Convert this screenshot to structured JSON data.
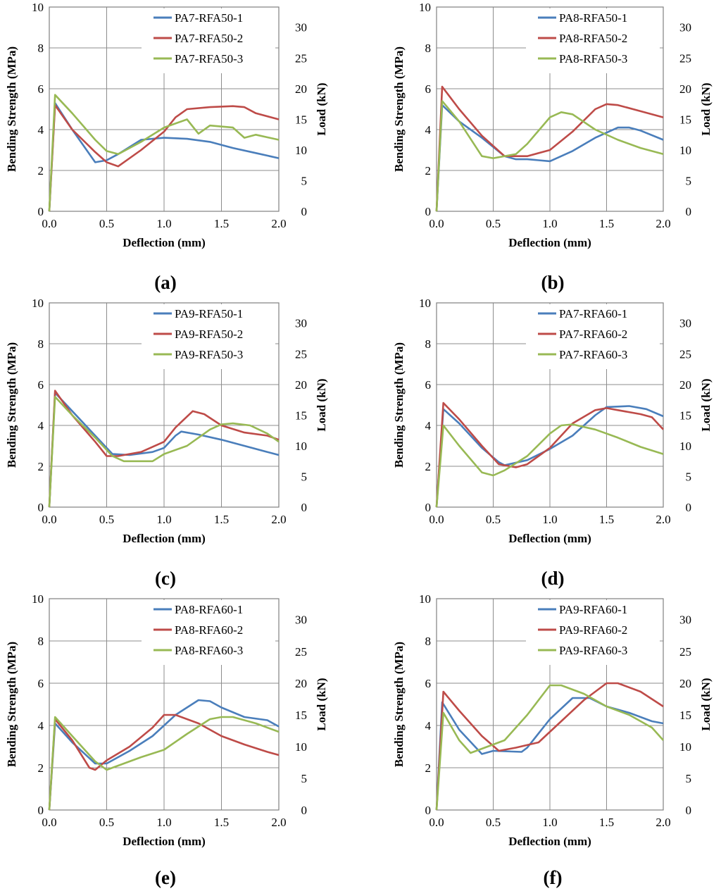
{
  "colors": {
    "series1": "#4a7ebb",
    "series2": "#be4b48",
    "series3": "#98b954"
  },
  "chart_data": [
    {
      "type": "line",
      "panel_label": "(a)",
      "xlabel": "Deflection (mm)",
      "ylabel": "Bending Strength (MPa)",
      "y2label": "Load (kN)",
      "xlim": [
        0,
        2
      ],
      "ylim": [
        0,
        10
      ],
      "y2lim": [
        0,
        33.3
      ],
      "xticks": [
        "0.0",
        "0.5",
        "1.0",
        "1.5",
        "2.0"
      ],
      "yticks": [
        "0",
        "2",
        "4",
        "6",
        "8",
        "10"
      ],
      "y2ticks": [
        "0",
        "5",
        "10",
        "15",
        "20",
        "25",
        "30"
      ],
      "series": [
        {
          "name": "PA7-RFA50-1",
          "x": [
            0,
            0.05,
            0.2,
            0.4,
            0.5,
            0.6,
            0.8,
            1.0,
            1.2,
            1.4,
            1.6,
            1.8,
            2.0
          ],
          "y": [
            0,
            5.3,
            4.0,
            2.4,
            2.5,
            2.8,
            3.5,
            3.6,
            3.55,
            3.4,
            3.1,
            2.85,
            2.6
          ]
        },
        {
          "name": "PA7-RFA50-2",
          "x": [
            0,
            0.05,
            0.2,
            0.4,
            0.5,
            0.6,
            0.8,
            1.0,
            1.1,
            1.2,
            1.4,
            1.6,
            1.7,
            1.8,
            2.0
          ],
          "y": [
            0,
            5.2,
            4.0,
            2.9,
            2.4,
            2.2,
            3.0,
            3.9,
            4.6,
            5.0,
            5.1,
            5.15,
            5.1,
            4.8,
            4.5
          ]
        },
        {
          "name": "PA7-RFA50-3",
          "x": [
            0,
            0.05,
            0.2,
            0.4,
            0.5,
            0.6,
            0.8,
            1.0,
            1.2,
            1.3,
            1.4,
            1.6,
            1.7,
            1.8,
            2.0
          ],
          "y": [
            0,
            5.7,
            4.8,
            3.5,
            2.95,
            2.8,
            3.4,
            4.1,
            4.5,
            3.8,
            4.2,
            4.1,
            3.6,
            3.75,
            3.5
          ]
        }
      ]
    },
    {
      "type": "line",
      "panel_label": "(b)",
      "xlabel": "Deflection (mm)",
      "ylabel": "Bending Strength (MPa)",
      "y2label": "Load (kN)",
      "xlim": [
        0,
        2
      ],
      "ylim": [
        0,
        10
      ],
      "y2lim": [
        0,
        33.3
      ],
      "xticks": [
        "0.0",
        "0.5",
        "1.0",
        "1.5",
        "2.0"
      ],
      "yticks": [
        "0",
        "2",
        "4",
        "6",
        "8",
        "10"
      ],
      "y2ticks": [
        "0",
        "5",
        "10",
        "15",
        "20",
        "25",
        "30"
      ],
      "series": [
        {
          "name": "PA8-RFA50-1",
          "x": [
            0,
            0.05,
            0.2,
            0.4,
            0.6,
            0.7,
            0.8,
            1.0,
            1.2,
            1.4,
            1.6,
            1.7,
            1.8,
            2.0
          ],
          "y": [
            0,
            5.2,
            4.4,
            3.6,
            2.7,
            2.55,
            2.55,
            2.45,
            2.95,
            3.6,
            4.1,
            4.1,
            3.95,
            3.5
          ]
        },
        {
          "name": "PA8-RFA50-2",
          "x": [
            0,
            0.05,
            0.2,
            0.4,
            0.6,
            0.8,
            1.0,
            1.2,
            1.4,
            1.5,
            1.6,
            1.8,
            2.0
          ],
          "y": [
            0,
            6.1,
            5.0,
            3.7,
            2.7,
            2.7,
            3.0,
            3.9,
            5.0,
            5.25,
            5.2,
            4.9,
            4.6
          ]
        },
        {
          "name": "PA8-RFA50-3",
          "x": [
            0,
            0.05,
            0.2,
            0.4,
            0.5,
            0.7,
            0.8,
            1.0,
            1.1,
            1.2,
            1.4,
            1.6,
            1.8,
            2.0
          ],
          "y": [
            0,
            5.4,
            4.4,
            2.7,
            2.6,
            2.8,
            3.3,
            4.6,
            4.85,
            4.75,
            4.0,
            3.5,
            3.1,
            2.8
          ]
        }
      ]
    },
    {
      "type": "line",
      "panel_label": "(c)",
      "xlabel": "Deflection (mm)",
      "ylabel": "Bending Strength (MPa)",
      "y2label": "Load (kN)",
      "xlim": [
        0,
        2
      ],
      "ylim": [
        0,
        10
      ],
      "y2lim": [
        0,
        33.3
      ],
      "xticks": [
        "0.0",
        "0.5",
        "1.0",
        "1.5",
        "2.0"
      ],
      "yticks": [
        "0",
        "2",
        "4",
        "6",
        "8",
        "10"
      ],
      "y2ticks": [
        "0",
        "5",
        "10",
        "15",
        "20",
        "25",
        "30"
      ],
      "series": [
        {
          "name": "PA9-RFA50-1",
          "x": [
            0,
            0.05,
            0.2,
            0.4,
            0.55,
            0.7,
            0.9,
            1.0,
            1.1,
            1.15,
            1.3,
            1.5,
            1.7,
            1.9,
            2.0
          ],
          "y": [
            0,
            5.6,
            4.7,
            3.5,
            2.6,
            2.55,
            2.7,
            2.9,
            3.5,
            3.7,
            3.55,
            3.3,
            3.0,
            2.7,
            2.55
          ]
        },
        {
          "name": "PA9-RFA50-2",
          "x": [
            0,
            0.05,
            0.2,
            0.4,
            0.5,
            0.6,
            0.8,
            1.0,
            1.1,
            1.25,
            1.35,
            1.5,
            1.7,
            1.9,
            2.0
          ],
          "y": [
            0,
            5.7,
            4.5,
            3.2,
            2.5,
            2.5,
            2.7,
            3.2,
            3.9,
            4.7,
            4.55,
            4.0,
            3.65,
            3.5,
            3.3
          ]
        },
        {
          "name": "PA9-RFA50-3",
          "x": [
            0,
            0.05,
            0.2,
            0.4,
            0.55,
            0.65,
            0.8,
            0.9,
            1.0,
            1.2,
            1.4,
            1.5,
            1.6,
            1.75,
            1.9,
            2.0
          ],
          "y": [
            0,
            5.4,
            4.5,
            3.4,
            2.5,
            2.25,
            2.25,
            2.25,
            2.6,
            3.0,
            3.8,
            4.05,
            4.1,
            4.0,
            3.6,
            3.2
          ]
        }
      ]
    },
    {
      "type": "line",
      "panel_label": "(d)",
      "xlabel": "Deflection (mm)",
      "ylabel": "Bending Strength (MPa)",
      "y2label": "Load (kN)",
      "xlim": [
        0,
        2
      ],
      "ylim": [
        0,
        10
      ],
      "y2lim": [
        0,
        33.3
      ],
      "xticks": [
        "0.0",
        "0.5",
        "1.0",
        "1.5",
        "2.0"
      ],
      "yticks": [
        "0",
        "2",
        "4",
        "6",
        "8",
        "10"
      ],
      "y2ticks": [
        "0",
        "5",
        "10",
        "15",
        "20",
        "25",
        "30"
      ],
      "series": [
        {
          "name": "PA7-RFA60-1",
          "x": [
            0,
            0.06,
            0.2,
            0.4,
            0.55,
            0.6,
            0.8,
            1.0,
            1.2,
            1.4,
            1.5,
            1.7,
            1.85,
            2.0
          ],
          "y": [
            0,
            4.8,
            4.1,
            2.9,
            2.2,
            2.05,
            2.3,
            2.85,
            3.5,
            4.5,
            4.9,
            4.95,
            4.8,
            4.45
          ]
        },
        {
          "name": "PA7-RFA60-2",
          "x": [
            0,
            0.06,
            0.2,
            0.4,
            0.55,
            0.7,
            0.8,
            1.0,
            1.2,
            1.4,
            1.5,
            1.6,
            1.8,
            1.9,
            2.0
          ],
          "y": [
            0,
            5.1,
            4.3,
            3.0,
            2.1,
            1.95,
            2.1,
            2.9,
            4.1,
            4.75,
            4.85,
            4.75,
            4.55,
            4.4,
            3.8
          ]
        },
        {
          "name": "PA7-RFA60-3",
          "x": [
            0,
            0.06,
            0.2,
            0.4,
            0.5,
            0.6,
            0.8,
            1.0,
            1.1,
            1.2,
            1.4,
            1.6,
            1.8,
            2.0
          ],
          "y": [
            0,
            4.0,
            3.0,
            1.7,
            1.55,
            1.8,
            2.5,
            3.6,
            4.0,
            4.05,
            3.8,
            3.4,
            2.95,
            2.6
          ]
        }
      ]
    },
    {
      "type": "line",
      "panel_label": "(e)",
      "xlabel": "Deflection (mm)",
      "ylabel": "Bending Strength (MPa)",
      "y2label": "Load (kN)",
      "xlim": [
        0,
        2
      ],
      "ylim": [
        0,
        10
      ],
      "y2lim": [
        0,
        33.3
      ],
      "xticks": [
        "0.0",
        "0.5",
        "1.0",
        "1.5",
        "2.0"
      ],
      "yticks": [
        "0",
        "2",
        "4",
        "6",
        "8",
        "10"
      ],
      "y2ticks": [
        "0",
        "5",
        "10",
        "15",
        "20",
        "25",
        "30"
      ],
      "series": [
        {
          "name": "PA8-RFA60-1",
          "x": [
            0,
            0.05,
            0.2,
            0.4,
            0.5,
            0.7,
            0.9,
            1.1,
            1.3,
            1.4,
            1.5,
            1.7,
            1.9,
            2.0
          ],
          "y": [
            0,
            4.1,
            3.2,
            2.2,
            2.2,
            2.8,
            3.5,
            4.5,
            5.2,
            5.15,
            4.85,
            4.4,
            4.25,
            3.95
          ]
        },
        {
          "name": "PA8-RFA60-2",
          "x": [
            0,
            0.05,
            0.2,
            0.35,
            0.4,
            0.5,
            0.7,
            0.9,
            1.0,
            1.1,
            1.3,
            1.5,
            1.7,
            1.9,
            2.0
          ],
          "y": [
            0,
            4.3,
            3.3,
            2.0,
            1.9,
            2.35,
            3.0,
            3.9,
            4.5,
            4.5,
            4.1,
            3.5,
            3.1,
            2.75,
            2.6
          ]
        },
        {
          "name": "PA8-RFA60-3",
          "x": [
            0,
            0.05,
            0.2,
            0.4,
            0.5,
            0.6,
            0.8,
            1.0,
            1.2,
            1.4,
            1.5,
            1.6,
            1.8,
            2.0
          ],
          "y": [
            0,
            4.4,
            3.5,
            2.3,
            1.9,
            2.1,
            2.5,
            2.85,
            3.6,
            4.3,
            4.4,
            4.4,
            4.1,
            3.7
          ]
        }
      ]
    },
    {
      "type": "line",
      "panel_label": "(f)",
      "xlabel": "Deflection (mm)",
      "ylabel": "Bending Strength (MPa)",
      "y2label": "Load (kN)",
      "xlim": [
        0,
        2
      ],
      "ylim": [
        0,
        10
      ],
      "y2lim": [
        0,
        33.3
      ],
      "xticks": [
        "0.0",
        "0.5",
        "1.0",
        "1.5",
        "2.0"
      ],
      "yticks": [
        "0",
        "2",
        "4",
        "6",
        "8",
        "10"
      ],
      "y2ticks": [
        "0",
        "5",
        "10",
        "15",
        "20",
        "25",
        "30"
      ],
      "series": [
        {
          "name": "PA9-RFA60-1",
          "x": [
            0,
            0.05,
            0.2,
            0.4,
            0.5,
            0.75,
            0.8,
            1.0,
            1.2,
            1.35,
            1.5,
            1.7,
            1.9,
            2.0
          ],
          "y": [
            0,
            5.1,
            3.8,
            2.65,
            2.8,
            2.75,
            2.95,
            4.3,
            5.3,
            5.3,
            4.9,
            4.6,
            4.2,
            4.1
          ]
        },
        {
          "name": "PA9-RFA60-2",
          "x": [
            0,
            0.06,
            0.2,
            0.4,
            0.55,
            0.7,
            0.9,
            1.1,
            1.3,
            1.5,
            1.6,
            1.8,
            2.0
          ],
          "y": [
            0,
            5.6,
            4.7,
            3.5,
            2.8,
            2.95,
            3.2,
            4.2,
            5.2,
            6.0,
            6.0,
            5.6,
            4.9
          ]
        },
        {
          "name": "PA9-RFA60-3",
          "x": [
            0,
            0.06,
            0.2,
            0.3,
            0.4,
            0.6,
            0.8,
            1.0,
            1.1,
            1.3,
            1.5,
            1.7,
            1.9,
            2.0
          ],
          "y": [
            0,
            4.6,
            3.3,
            2.7,
            2.9,
            3.3,
            4.5,
            5.9,
            5.9,
            5.5,
            4.9,
            4.5,
            3.9,
            3.3
          ]
        }
      ]
    }
  ]
}
